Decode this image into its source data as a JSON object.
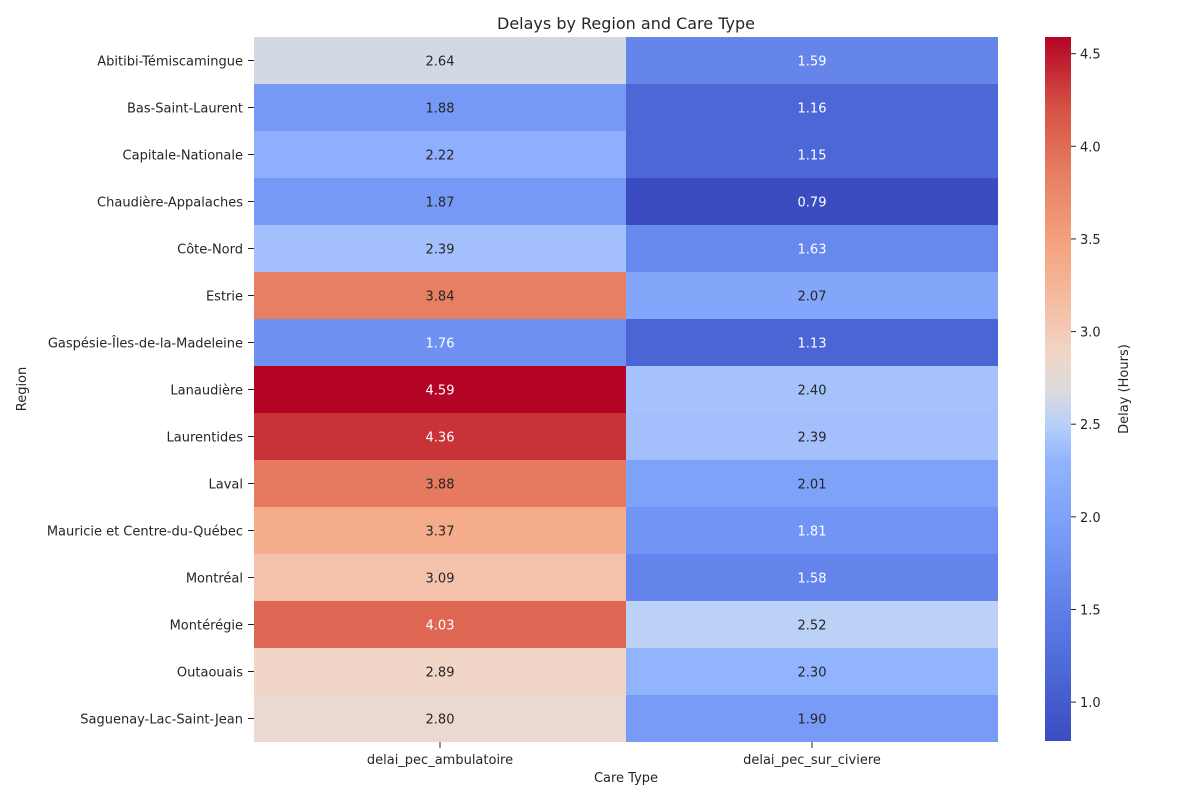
{
  "chart_data": {
    "type": "heatmap",
    "title": "Delays by Region and Care Type",
    "xlabel": "Care Type",
    "ylabel": "Region",
    "colorbar_label": "Delay (Hours)",
    "colormap": "coolwarm",
    "value_range": [
      0.79,
      4.59
    ],
    "colorbar_ticks": [
      "1.0",
      "1.5",
      "2.0",
      "2.5",
      "3.0",
      "3.5",
      "4.0",
      "4.5"
    ],
    "columns": [
      "delai_pec_ambulatoire",
      "delai_pec_sur_civiere"
    ],
    "rows": [
      "Abitibi-Témiscamingue",
      "Bas-Saint-Laurent",
      "Capitale-Nationale",
      "Chaudière-Appalaches",
      "Côte-Nord",
      "Estrie",
      "Gaspésie-Îles-de-la-Madeleine",
      "Lanaudière",
      "Laurentides",
      "Laval",
      "Mauricie et Centre-du-Québec",
      "Montréal",
      "Montérégie",
      "Outaouais",
      "Saguenay-Lac-Saint-Jean"
    ],
    "values": [
      [
        2.64,
        1.59
      ],
      [
        1.88,
        1.16
      ],
      [
        2.22,
        1.15
      ],
      [
        1.87,
        0.79
      ],
      [
        2.39,
        1.63
      ],
      [
        3.84,
        2.07
      ],
      [
        1.76,
        1.13
      ],
      [
        4.59,
        2.4
      ],
      [
        4.36,
        2.39
      ],
      [
        3.88,
        2.01
      ],
      [
        3.37,
        1.81
      ],
      [
        3.09,
        1.58
      ],
      [
        4.03,
        2.52
      ],
      [
        2.89,
        2.3
      ],
      [
        2.8,
        1.9
      ]
    ],
    "cell_labels": [
      [
        "2.64",
        "1.59"
      ],
      [
        "1.88",
        "1.16"
      ],
      [
        "2.22",
        "1.15"
      ],
      [
        "1.87",
        "0.79"
      ],
      [
        "2.39",
        "1.63"
      ],
      [
        "3.84",
        "2.07"
      ],
      [
        "1.76",
        "1.13"
      ],
      [
        "4.59",
        "2.40"
      ],
      [
        "4.36",
        "2.39"
      ],
      [
        "3.88",
        "2.01"
      ],
      [
        "3.37",
        "1.81"
      ],
      [
        "3.09",
        "1.58"
      ],
      [
        "4.03",
        "2.52"
      ],
      [
        "2.89",
        "2.30"
      ],
      [
        "2.80",
        "1.90"
      ]
    ]
  }
}
